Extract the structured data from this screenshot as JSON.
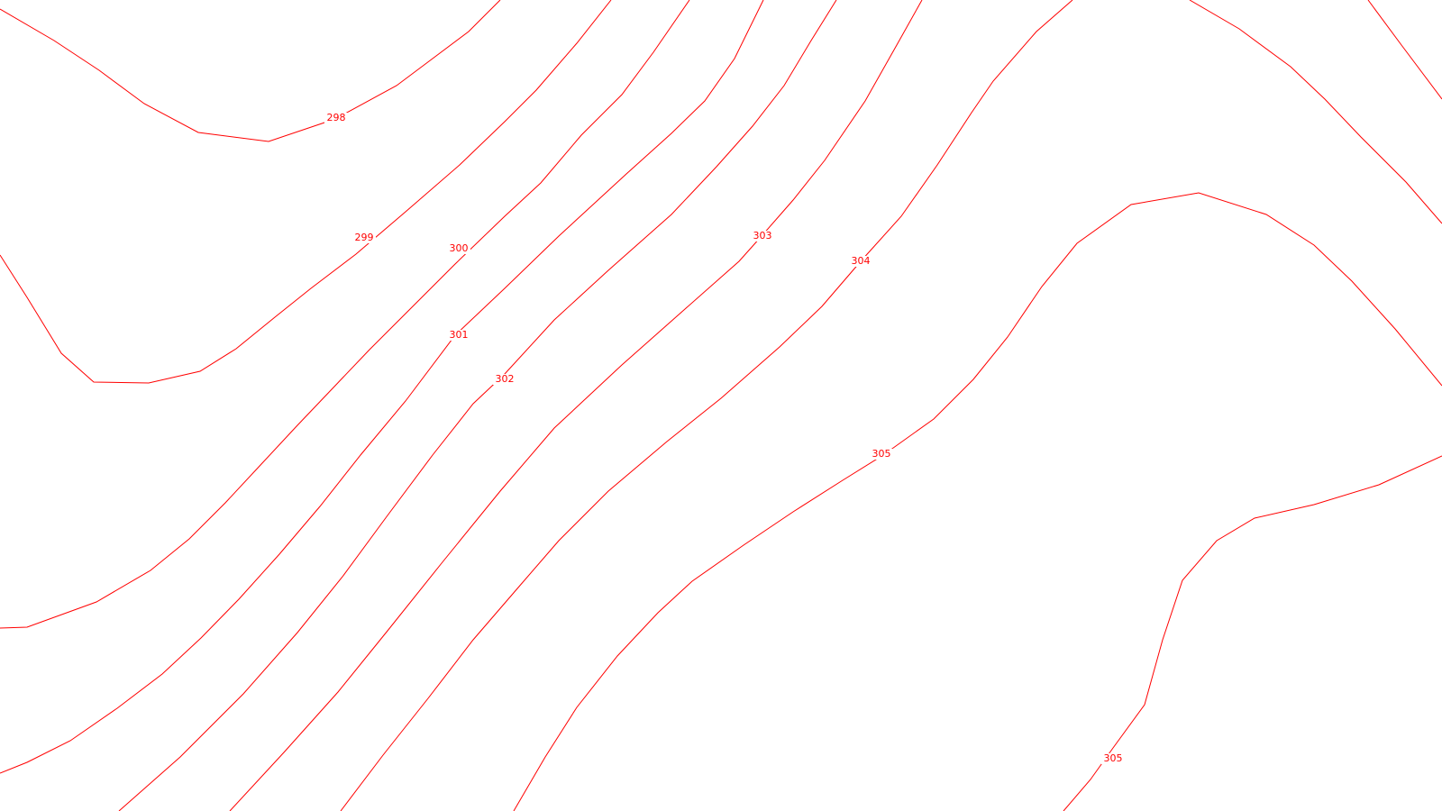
{
  "map": {
    "style": {
      "background": "#ffffff",
      "line_color": "#ff0000"
    },
    "contour_levels": [
      {
        "id": "298",
        "label": "298"
      },
      {
        "id": "299",
        "label": "299"
      },
      {
        "id": "300",
        "label": "300"
      },
      {
        "id": "301",
        "label": "301"
      },
      {
        "id": "302",
        "label": "302"
      },
      {
        "id": "303",
        "label": "303"
      },
      {
        "id": "304",
        "label": "304"
      },
      {
        "id": "305a",
        "label": "305"
      },
      {
        "id": "305b",
        "label": "305"
      }
    ]
  }
}
